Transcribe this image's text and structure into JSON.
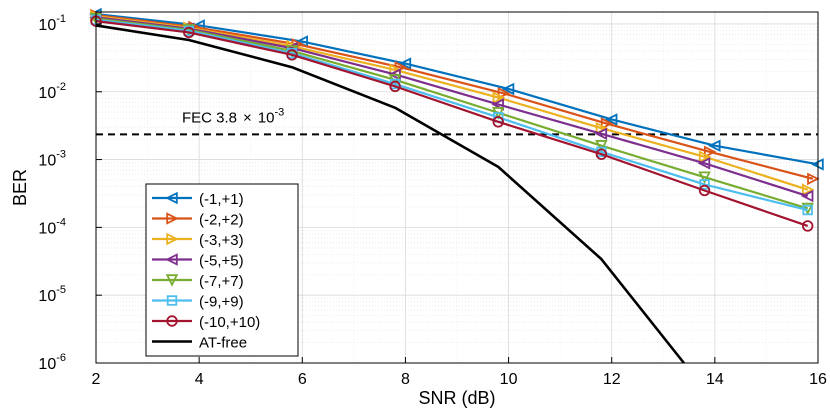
{
  "chart_data": {
    "type": "line",
    "title": "",
    "xlabel": "SNR (dB)",
    "ylabel": "BER",
    "x_scale": "linear",
    "y_scale": "log",
    "xlim": [
      2,
      16
    ],
    "ylim": [
      1e-06,
      0.15
    ],
    "xticks": [
      "2",
      "4",
      "6",
      "8",
      "10",
      "12",
      "14",
      "16"
    ],
    "yticks": [
      {
        "base": "10",
        "exp": "-6"
      },
      {
        "base": "10",
        "exp": "-5"
      },
      {
        "base": "10",
        "exp": "-4"
      },
      {
        "base": "10",
        "exp": "-3"
      },
      {
        "base": "10",
        "exp": "-2"
      },
      {
        "base": "10",
        "exp": "-1"
      }
    ],
    "grid": true,
    "legend_position": "bottom-left",
    "x": [
      2,
      3.8,
      5.8,
      7.8,
      9.8,
      11.8,
      13.8,
      15.8
    ],
    "threshold": {
      "value": 0.0038,
      "label_prefix": "FEC  3.8",
      "label_times": "×",
      "label_base": "10",
      "label_exp": "-3",
      "style": "dashed"
    },
    "series": [
      {
        "name": "(-1,+1)",
        "color": "#0072BD",
        "marker": "triangle-left",
        "x": [
          2,
          4,
          6,
          8,
          10,
          12,
          14,
          16
        ],
        "values": [
          0.14,
          0.095,
          0.055,
          0.026,
          0.011,
          0.0039,
          0.0016,
          0.00085
        ]
      },
      {
        "name": "(-2,+2)",
        "color": "#D95319",
        "marker": "triangle-right",
        "x": [
          2,
          3.9,
          5.9,
          7.9,
          9.9,
          11.9,
          13.9,
          15.9
        ],
        "values": [
          0.135,
          0.09,
          0.05,
          0.023,
          0.0095,
          0.0034,
          0.0013,
          0.00052
        ]
      },
      {
        "name": "(-3,+3)",
        "color": "#EDB120",
        "marker": "triangle-right",
        "x": [
          2,
          3.8,
          5.8,
          7.8,
          9.8,
          11.8,
          13.8,
          15.8
        ],
        "values": [
          0.13,
          0.088,
          0.047,
          0.021,
          0.0082,
          0.0029,
          0.0011,
          0.00036
        ]
      },
      {
        "name": "(-5,+5)",
        "color": "#7E2F8E",
        "marker": "triangle-left",
        "x": [
          2,
          3.8,
          5.8,
          7.8,
          9.8,
          11.8,
          13.8,
          15.8
        ],
        "values": [
          0.125,
          0.085,
          0.044,
          0.018,
          0.0065,
          0.0024,
          0.00088,
          0.00029
        ]
      },
      {
        "name": "(-7,+7)",
        "color": "#77AC30",
        "marker": "triangle-down",
        "x": [
          2,
          3.8,
          5.8,
          7.8,
          9.8,
          11.8,
          13.8,
          15.8
        ],
        "values": [
          0.12,
          0.082,
          0.04,
          0.015,
          0.0049,
          0.0016,
          0.00055,
          0.00019
        ]
      },
      {
        "name": "(-9,+9)",
        "color": "#4DBEEE",
        "marker": "square",
        "x": [
          2,
          3.8,
          5.8,
          7.8,
          9.8,
          11.8,
          13.8,
          15.8
        ],
        "values": [
          0.115,
          0.079,
          0.037,
          0.013,
          0.0042,
          0.0013,
          0.00043,
          0.00018
        ]
      },
      {
        "name": "(-10,+10)",
        "color": "#A2142F",
        "marker": "circle",
        "x": [
          2,
          3.8,
          5.8,
          7.8,
          9.8,
          11.8,
          13.8,
          15.8
        ],
        "values": [
          0.11,
          0.075,
          0.035,
          0.012,
          0.0036,
          0.0012,
          0.00035,
          0.000105
        ]
      },
      {
        "name": "AT-free",
        "color": "#000000",
        "marker": "none",
        "x": [
          2,
          3.8,
          5.8,
          7.8,
          9.8,
          11.8,
          13.4
        ],
        "values": [
          0.095,
          0.058,
          0.023,
          0.0058,
          0.00078,
          3.4e-05,
          1e-06
        ]
      }
    ]
  }
}
